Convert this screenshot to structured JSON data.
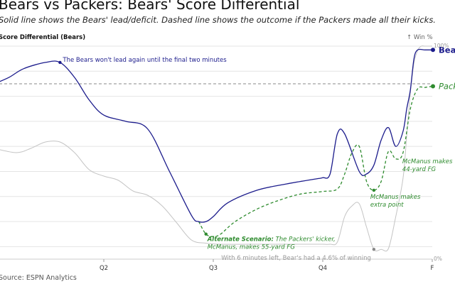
{
  "title": "Bears vs Packers: Bears' Score Differential",
  "subtitle": "Solid line shows the Bears' lead/deficit. Dashed line shows the outcome if the Packers made all their kicks.",
  "source": "Source: ESPN Analytics",
  "chart_data": {
    "type": "line",
    "ylabel": "Score Differential (Bears)",
    "ylabel_right": "↑ Win %",
    "right_ticks": [
      "100%",
      "0%"
    ],
    "x_ticks": [
      "Q2",
      "Q3",
      "Q4",
      "F"
    ],
    "x_tick_values": [
      15,
      30,
      45,
      60
    ],
    "xlim": [
      0,
      60
    ],
    "ylim": [
      -14,
      3
    ],
    "ylim_right": [
      0,
      100
    ],
    "grid": true,
    "zero_line": "dashed",
    "series": [
      {
        "name": "Bears",
        "style": "solid",
        "color": "#1c1c8c",
        "x": [
          0,
          2,
          4,
          7,
          9,
          11,
          13,
          15,
          18,
          21,
          24,
          27,
          28,
          29,
          30,
          32,
          36,
          40,
          44,
          45,
          46,
          47,
          48,
          50,
          51,
          52,
          53,
          54,
          55,
          56,
          56.5,
          57,
          57.5,
          58,
          59,
          60
        ],
        "y": [
          0,
          0.5,
          1.2,
          1.7,
          1.7,
          0.5,
          -1.3,
          -2.5,
          -3,
          -3.6,
          -7,
          -10.5,
          -11,
          -11,
          -10.6,
          -9.5,
          -8.5,
          -8,
          -7.6,
          -7.5,
          -7.2,
          -4,
          -4,
          -7,
          -7.2,
          -6.5,
          -4.5,
          -3.5,
          -5,
          -3.8,
          -2,
          -0.5,
          2,
          2.7,
          2.7,
          2.7
        ]
      },
      {
        "name": "Packers",
        "style": "dashed",
        "color": "#2e8b2e",
        "x": [
          28,
          29,
          30,
          31,
          33,
          36,
          39,
          42,
          45,
          47,
          48,
          49,
          50,
          51,
          52,
          53,
          54,
          55,
          56,
          57,
          58,
          59,
          60
        ],
        "y": [
          -11,
          -12,
          -12.2,
          -12,
          -11,
          -10,
          -9.3,
          -8.8,
          -8.6,
          -8.4,
          -7.2,
          -5.5,
          -5,
          -7.8,
          -8.5,
          -7.8,
          -5.4,
          -6,
          -5.5,
          -2,
          -0.4,
          -0.3,
          -0.2
        ]
      },
      {
        "name": "Win %",
        "style": "solid",
        "color": "#c4c4c4",
        "axis": "right",
        "x": [
          0,
          3,
          5,
          7,
          9,
          11,
          13,
          15,
          17,
          19,
          21,
          23,
          25,
          27,
          29,
          31,
          35,
          40,
          44,
          45,
          46,
          47,
          48,
          49,
          50,
          51,
          52,
          53,
          54,
          55,
          56,
          56.5,
          57,
          57.5,
          58,
          58.5,
          59,
          60
        ],
        "y": [
          52,
          50,
          52,
          55,
          55,
          50,
          42,
          39,
          37,
          32,
          30,
          25,
          17,
          9,
          7.5,
          7,
          7,
          7,
          7,
          7,
          7,
          8,
          20,
          25,
          26,
          15,
          4.6,
          4.6,
          5,
          20,
          38,
          58,
          78,
          92,
          98,
          100,
          100,
          100
        ]
      }
    ],
    "end_labels": [
      {
        "text": "Bears",
        "series": "Bears"
      },
      {
        "text": "Packers",
        "series": "Packers"
      }
    ],
    "annotations": [
      {
        "lines": [
          "The Bears won't lead again until the final two minutes"
        ],
        "series": "Bears",
        "x": 9,
        "y": 1.7,
        "color": "#1c1c8c"
      },
      {
        "lines": [
          "Alternate Scenario: The Packers' kicker,",
          "McManus, makes 55-yard FG"
        ],
        "bold_prefix": "Alternate Scenario:",
        "series": "Packers",
        "x": 29,
        "y": -12,
        "color": "#2e8b2e",
        "italic": true
      },
      {
        "lines": [
          "McManus makes",
          "extra point"
        ],
        "series": "Packers",
        "x": 52,
        "y": -8.5,
        "color": "#2e8b2e",
        "italic": true
      },
      {
        "lines": [
          "McManus makes",
          "44-yard FG"
        ],
        "series": "Packers",
        "x": 56,
        "y": -5.5,
        "color": "#2e8b2e",
        "italic": true
      },
      {
        "lines": [
          "With 6 minutes left, Bear's had a 4.6% of winning"
        ],
        "series": "Win %",
        "x": 52,
        "y": 4.6,
        "color": "#999999"
      }
    ]
  }
}
